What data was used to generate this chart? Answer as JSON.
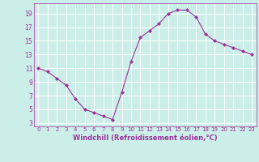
{
  "x": [
    0,
    1,
    2,
    3,
    4,
    5,
    6,
    7,
    8,
    9,
    10,
    11,
    12,
    13,
    14,
    15,
    16,
    17,
    18,
    19,
    20,
    21,
    22,
    23
  ],
  "y": [
    11,
    10.5,
    9.5,
    8.5,
    6.5,
    5,
    4.5,
    4,
    3.5,
    7.5,
    12,
    15.5,
    16.5,
    17.5,
    19,
    19.5,
    19.5,
    18.5,
    16,
    15,
    14.5,
    14,
    13.5,
    13
  ],
  "line_color": "#993399",
  "marker": "D",
  "marker_size": 2.0,
  "line_width": 0.8,
  "xlabel": "Windchill (Refroidissement éolien,°C)",
  "xlabel_fontsize": 6,
  "xtick_labels": [
    "0",
    "1",
    "2",
    "3",
    "4",
    "5",
    "6",
    "7",
    "8",
    "9",
    "10",
    "11",
    "12",
    "13",
    "14",
    "15",
    "16",
    "17",
    "18",
    "19",
    "20",
    "21",
    "22",
    "23"
  ],
  "ytick_values": [
    3,
    5,
    7,
    9,
    11,
    13,
    15,
    17,
    19
  ],
  "ylim": [
    2.5,
    20.5
  ],
  "xlim": [
    -0.5,
    23.5
  ],
  "background_color": "#cceee8",
  "grid_color": "#ffffff",
  "tick_color": "#993399",
  "label_color": "#993399",
  "xtick_fontsize": 5,
  "ytick_fontsize": 5.5
}
